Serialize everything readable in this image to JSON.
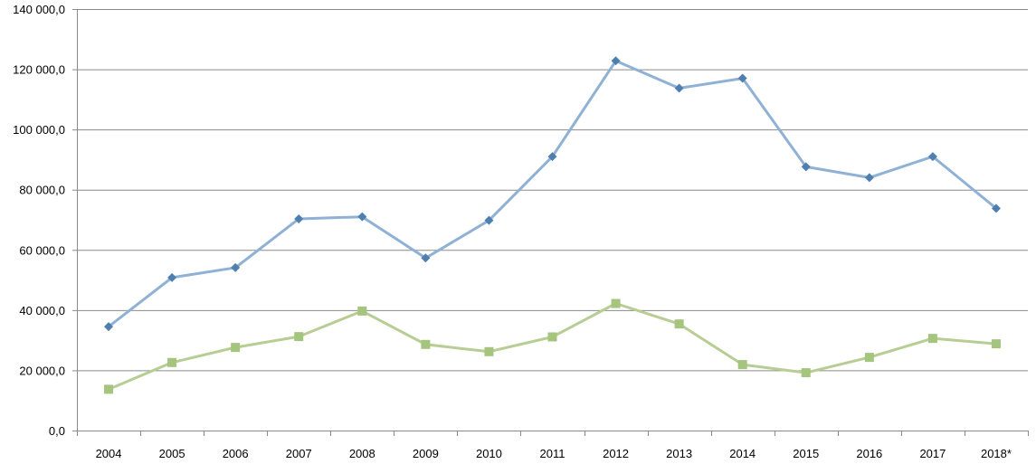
{
  "chart_data": {
    "type": "line",
    "title": "",
    "xlabel": "",
    "ylabel": "",
    "categories": [
      "2004",
      "2005",
      "2006",
      "2007",
      "2008",
      "2009",
      "2010",
      "2011",
      "2012",
      "2013",
      "2014",
      "2015",
      "2016",
      "2017",
      "2018*"
    ],
    "ylim": [
      0,
      140000
    ],
    "yticks": [
      0,
      20000,
      40000,
      60000,
      80000,
      100000,
      120000,
      140000
    ],
    "ytick_labels": [
      "0,0",
      "20 000,0",
      "40 000,0",
      "60 000,0",
      "80 000,0",
      "100 000,0",
      "120 000,0",
      "140 000,0"
    ],
    "grid": true,
    "legend": "none",
    "series": [
      {
        "values": [
          34500,
          50800,
          54100,
          70300,
          71000,
          57300,
          69800,
          91000,
          122800,
          113700,
          117000,
          87600,
          84000,
          91000,
          73800
        ],
        "color": "#8fb1d6",
        "marker_color": "#4f7fae",
        "marker": "diamond"
      },
      {
        "values": [
          13700,
          22600,
          27600,
          31200,
          39700,
          28600,
          26200,
          31100,
          42200,
          35400,
          21900,
          19200,
          24300,
          30600,
          28800
        ],
        "color": "#b7cd93",
        "marker_color": "#a5c47e",
        "marker": "square"
      }
    ]
  }
}
